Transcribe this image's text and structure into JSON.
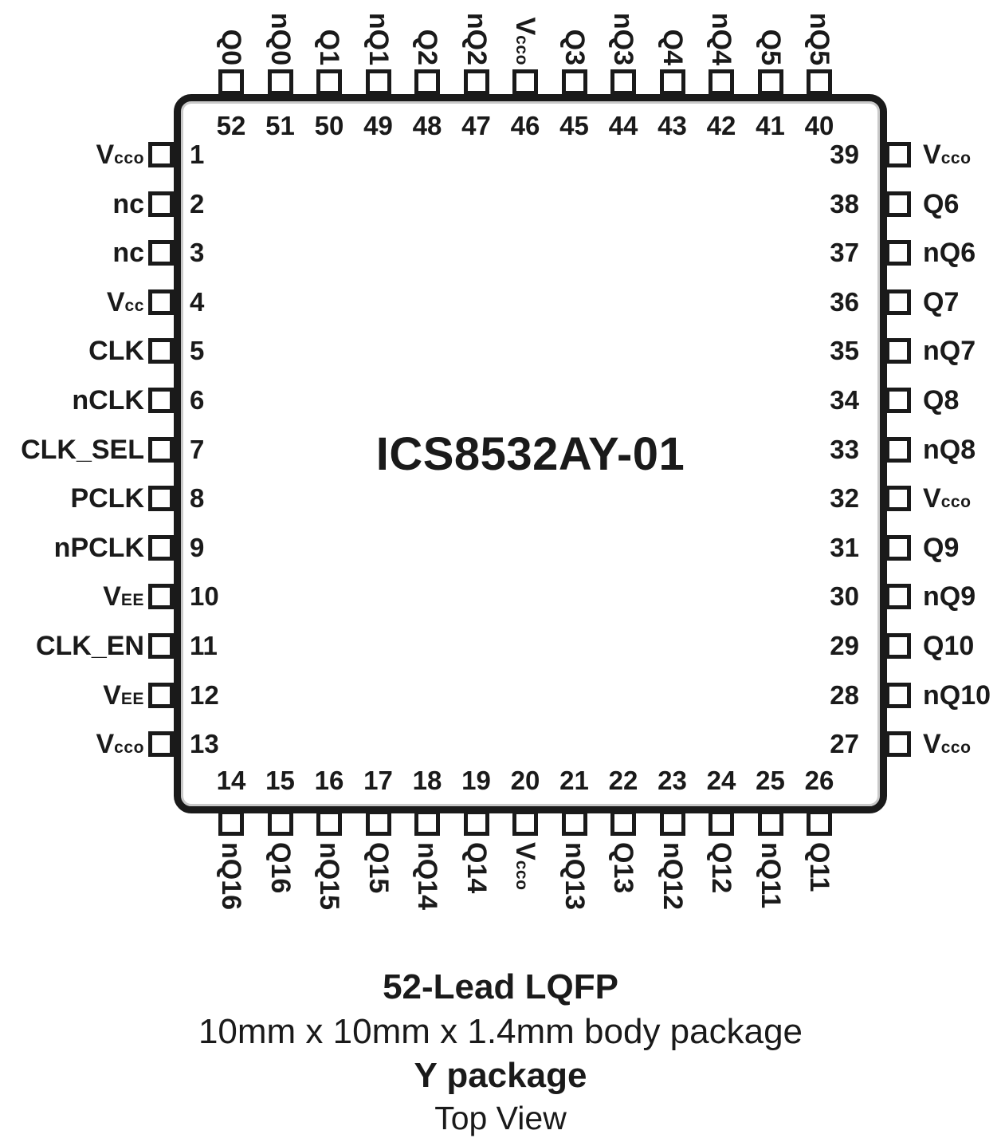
{
  "title": "ICS8532AY-01",
  "caption": {
    "line1": "52-Lead LQFP",
    "line2": "10mm x 10mm x 1.4mm body package",
    "line3": "Y package",
    "line4": "Top View"
  },
  "colors": {
    "ink": "#1a1a1a",
    "background": "#ffffff"
  },
  "pins": {
    "top": [
      {
        "num": "52",
        "pre": "Q0",
        "sub": ""
      },
      {
        "num": "51",
        "pre": "nQ0",
        "sub": ""
      },
      {
        "num": "50",
        "pre": "Q1",
        "sub": ""
      },
      {
        "num": "49",
        "pre": "nQ1",
        "sub": ""
      },
      {
        "num": "48",
        "pre": "Q2",
        "sub": ""
      },
      {
        "num": "47",
        "pre": "nQ2",
        "sub": ""
      },
      {
        "num": "46",
        "pre": "V",
        "sub": "cco"
      },
      {
        "num": "45",
        "pre": "Q3",
        "sub": ""
      },
      {
        "num": "44",
        "pre": "nQ3",
        "sub": ""
      },
      {
        "num": "43",
        "pre": "Q4",
        "sub": ""
      },
      {
        "num": "42",
        "pre": "nQ4",
        "sub": ""
      },
      {
        "num": "41",
        "pre": "Q5",
        "sub": ""
      },
      {
        "num": "40",
        "pre": "nQ5",
        "sub": ""
      }
    ],
    "left": [
      {
        "num": "1",
        "pre": "V",
        "sub": "cco"
      },
      {
        "num": "2",
        "pre": "nc",
        "sub": ""
      },
      {
        "num": "3",
        "pre": "nc",
        "sub": ""
      },
      {
        "num": "4",
        "pre": "V",
        "sub": "cc"
      },
      {
        "num": "5",
        "pre": "CLK",
        "sub": ""
      },
      {
        "num": "6",
        "pre": "nCLK",
        "sub": ""
      },
      {
        "num": "7",
        "pre": "CLK_SEL",
        "sub": ""
      },
      {
        "num": "8",
        "pre": "PCLK",
        "sub": ""
      },
      {
        "num": "9",
        "pre": "nPCLK",
        "sub": ""
      },
      {
        "num": "10",
        "pre": "V",
        "sub": "EE"
      },
      {
        "num": "11",
        "pre": "CLK_EN",
        "sub": ""
      },
      {
        "num": "12",
        "pre": "V",
        "sub": "EE"
      },
      {
        "num": "13",
        "pre": "V",
        "sub": "cco"
      }
    ],
    "right": [
      {
        "num": "39",
        "pre": "V",
        "sub": "cco"
      },
      {
        "num": "38",
        "pre": "Q6",
        "sub": ""
      },
      {
        "num": "37",
        "pre": "nQ6",
        "sub": ""
      },
      {
        "num": "36",
        "pre": "Q7",
        "sub": ""
      },
      {
        "num": "35",
        "pre": "nQ7",
        "sub": ""
      },
      {
        "num": "34",
        "pre": "Q8",
        "sub": ""
      },
      {
        "num": "33",
        "pre": "nQ8",
        "sub": ""
      },
      {
        "num": "32",
        "pre": "V",
        "sub": "cco"
      },
      {
        "num": "31",
        "pre": "Q9",
        "sub": ""
      },
      {
        "num": "30",
        "pre": "nQ9",
        "sub": ""
      },
      {
        "num": "29",
        "pre": "Q10",
        "sub": ""
      },
      {
        "num": "28",
        "pre": "nQ10",
        "sub": ""
      },
      {
        "num": "27",
        "pre": "V",
        "sub": "cco"
      }
    ],
    "bottom": [
      {
        "num": "14",
        "pre": "nQ16",
        "sub": ""
      },
      {
        "num": "15",
        "pre": "Q16",
        "sub": ""
      },
      {
        "num": "16",
        "pre": "nQ15",
        "sub": ""
      },
      {
        "num": "17",
        "pre": "Q15",
        "sub": ""
      },
      {
        "num": "18",
        "pre": "nQ14",
        "sub": ""
      },
      {
        "num": "19",
        "pre": "Q14",
        "sub": ""
      },
      {
        "num": "20",
        "pre": "V",
        "sub": "cco"
      },
      {
        "num": "21",
        "pre": "nQ13",
        "sub": ""
      },
      {
        "num": "22",
        "pre": "Q13",
        "sub": ""
      },
      {
        "num": "23",
        "pre": "nQ12",
        "sub": ""
      },
      {
        "num": "24",
        "pre": "Q12",
        "sub": ""
      },
      {
        "num": "25",
        "pre": "nQ11",
        "sub": ""
      },
      {
        "num": "26",
        "pre": "Q11",
        "sub": ""
      }
    ]
  }
}
